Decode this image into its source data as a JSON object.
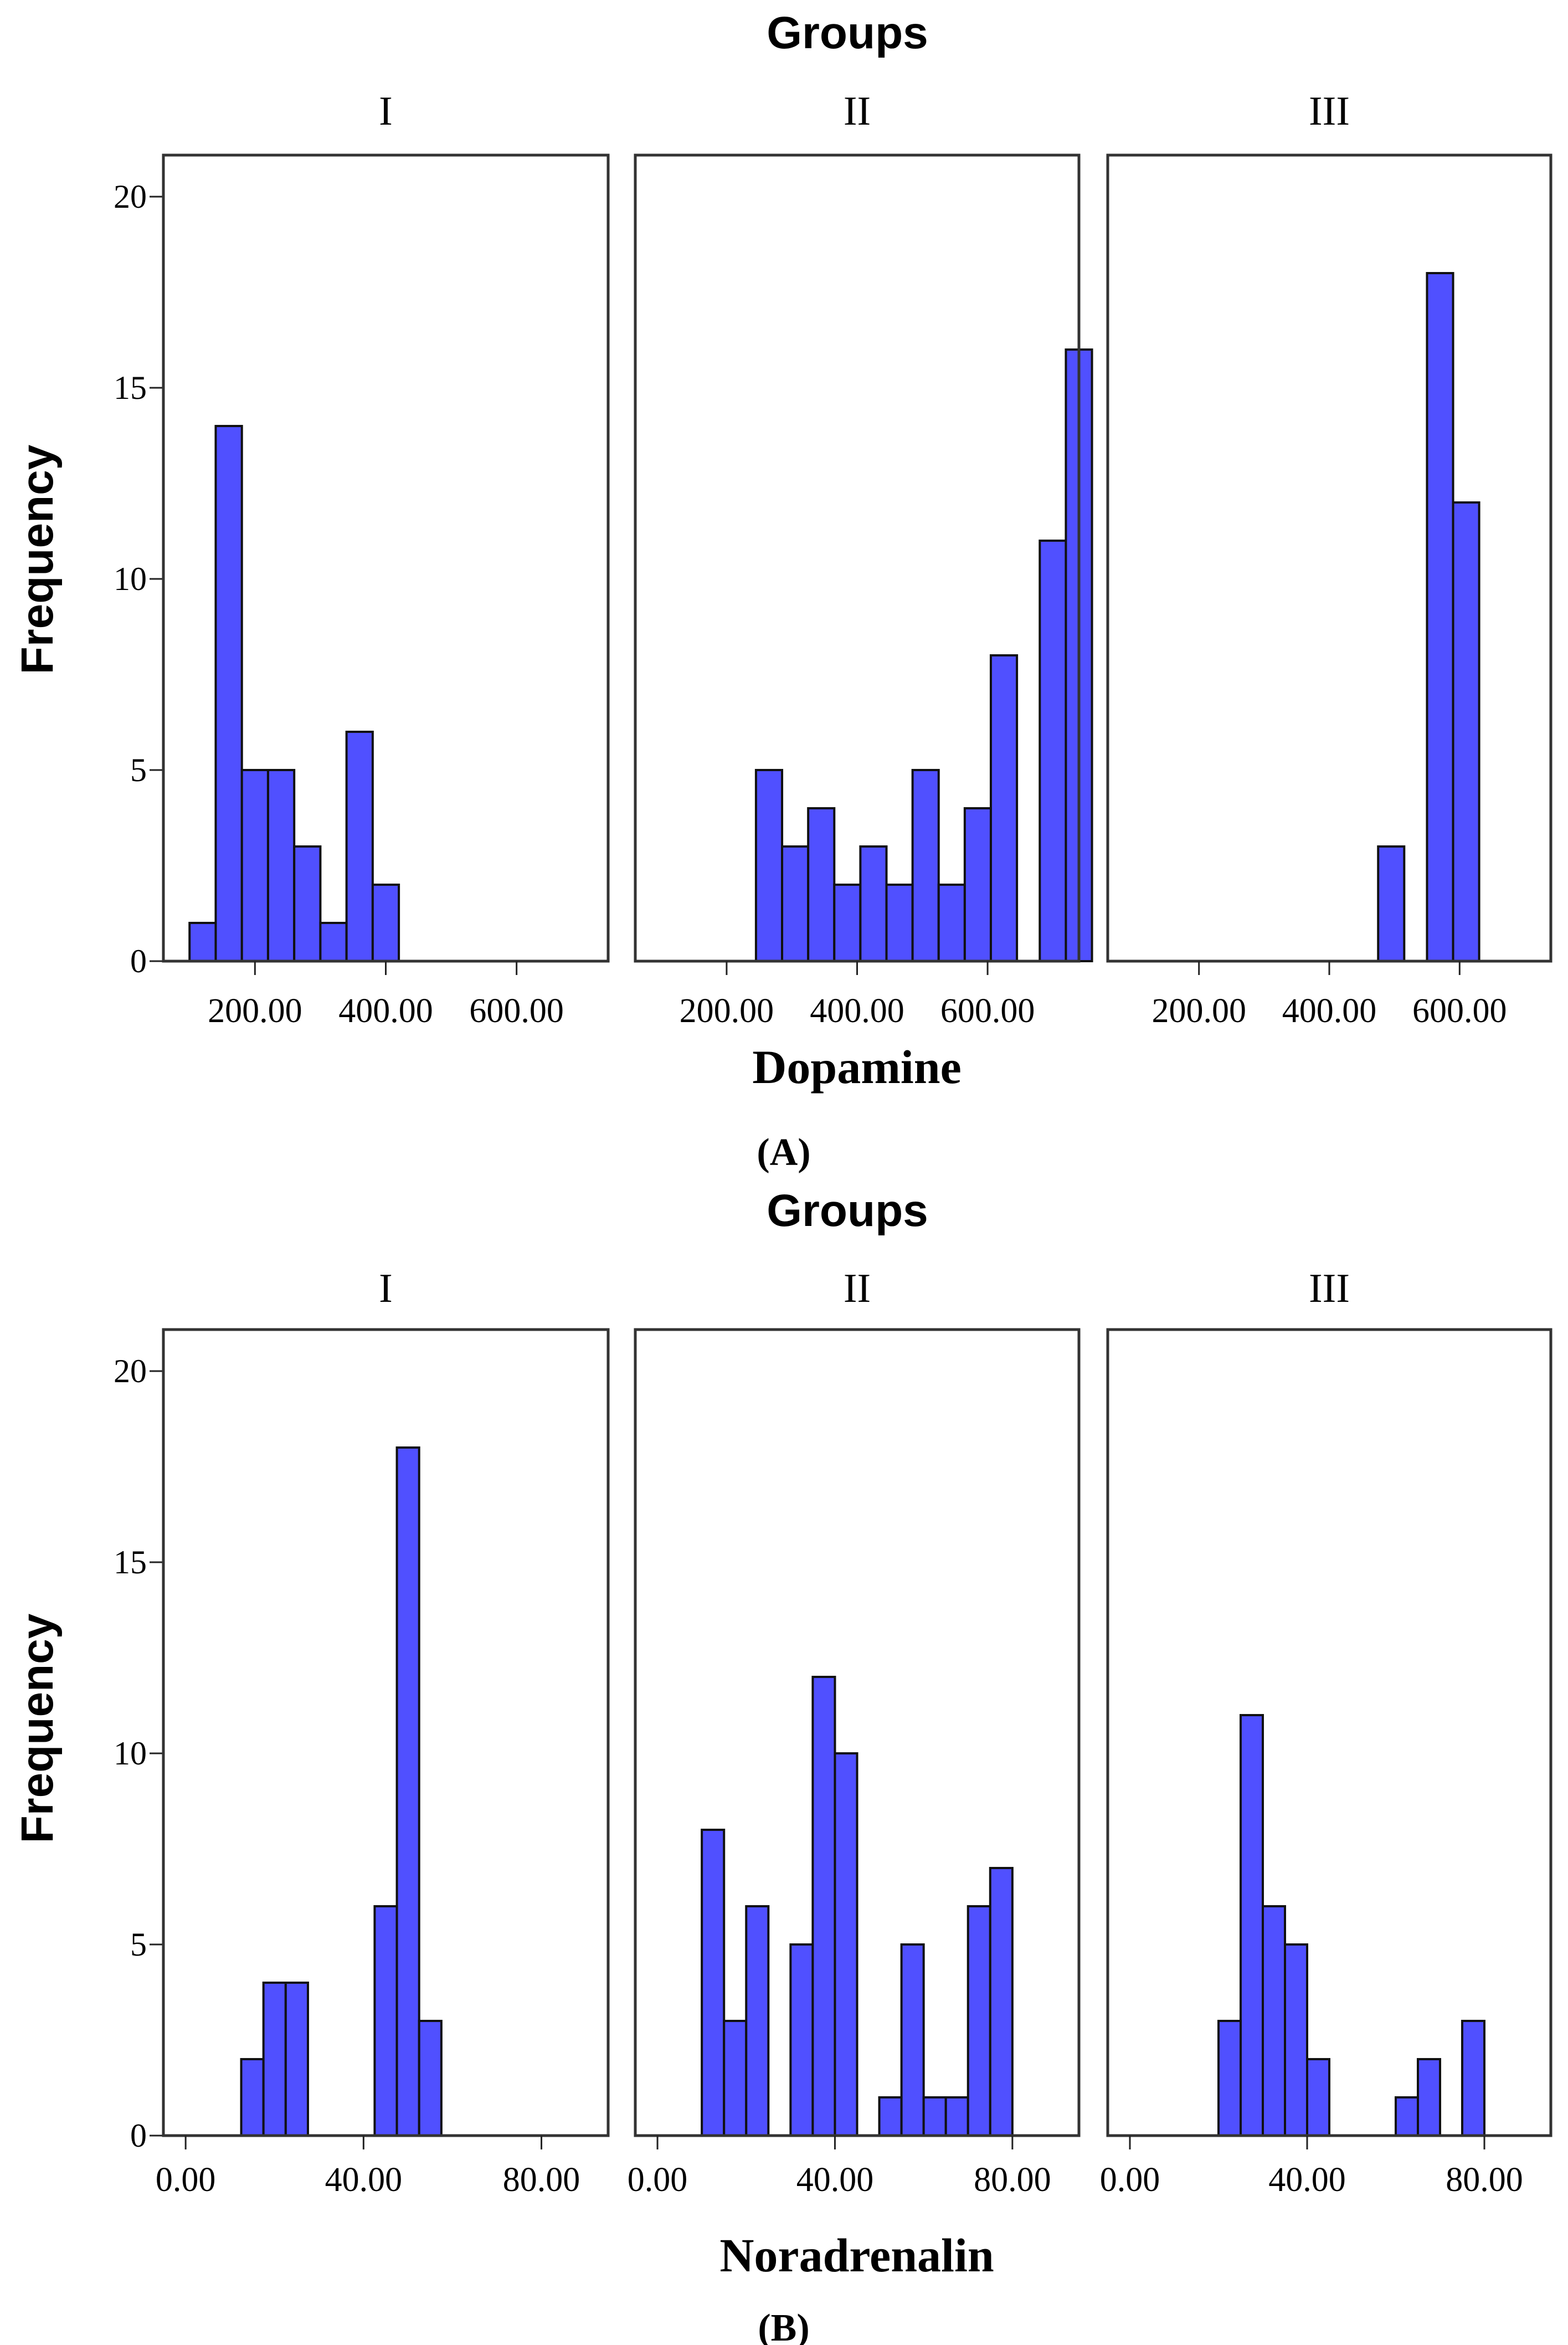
{
  "figure_labels": {
    "a": "(A)",
    "b": "(B)"
  },
  "colors": {
    "bar_fill": "#5050ff",
    "bar_edge": "#111111",
    "frame": "#333333"
  },
  "chart_data": [
    {
      "type": "bar",
      "subtype": "histogram-panels",
      "title": "Groups",
      "xlabel": "Dopamine",
      "ylabel": "Frequency",
      "ylim": [
        0,
        21
      ],
      "yticks": [
        0,
        5,
        10,
        15,
        20
      ],
      "ytick_labels": [
        "0",
        "5",
        "10",
        "15",
        "20"
      ],
      "xlim": [
        60,
        740
      ],
      "xticks": [
        200,
        400,
        600
      ],
      "xtick_labels": [
        "200.00",
        "400.00",
        "600.00"
      ],
      "bin_width": 40,
      "grid": false,
      "panels": [
        {
          "name": "I",
          "bins": [
            {
              "x": 120,
              "value": 1
            },
            {
              "x": 160,
              "value": 14
            },
            {
              "x": 200,
              "value": 5
            },
            {
              "x": 240,
              "value": 5
            },
            {
              "x": 280,
              "value": 3
            },
            {
              "x": 320,
              "value": 1
            },
            {
              "x": 360,
              "value": 6
            },
            {
              "x": 400,
              "value": 2
            }
          ]
        },
        {
          "name": "II",
          "bins": [
            {
              "x": 265,
              "value": 5
            },
            {
              "x": 305,
              "value": 3
            },
            {
              "x": 345,
              "value": 4
            },
            {
              "x": 385,
              "value": 2
            },
            {
              "x": 425,
              "value": 3
            },
            {
              "x": 465,
              "value": 2
            },
            {
              "x": 505,
              "value": 5
            },
            {
              "x": 545,
              "value": 2
            },
            {
              "x": 585,
              "value": 4
            },
            {
              "x": 625,
              "value": 8
            },
            {
              "x": 700,
              "value": 11
            },
            {
              "x": 740,
              "value": 16
            }
          ]
        },
        {
          "name": "III",
          "bins": [
            {
              "x": 495,
              "value": 3
            },
            {
              "x": 570,
              "value": 18
            },
            {
              "x": 610,
              "value": 12
            }
          ]
        }
      ]
    },
    {
      "type": "bar",
      "subtype": "histogram-panels",
      "title": "Groups",
      "xlabel": "Noradrenalin",
      "ylabel": "Frequency",
      "ylim": [
        0,
        21
      ],
      "yticks": [
        0,
        5,
        10,
        15,
        20
      ],
      "ytick_labels": [
        "0",
        "5",
        "10",
        "15",
        "20"
      ],
      "xlim": [
        -5,
        95
      ],
      "xticks": [
        0,
        40,
        80
      ],
      "xtick_labels": [
        "0.00",
        "40.00",
        "80.00"
      ],
      "bin_width": 5,
      "grid": false,
      "panels": [
        {
          "name": "I",
          "bins": [
            {
              "x": 15,
              "value": 2
            },
            {
              "x": 20,
              "value": 4
            },
            {
              "x": 25,
              "value": 4
            },
            {
              "x": 45,
              "value": 6
            },
            {
              "x": 50,
              "value": 18
            },
            {
              "x": 55,
              "value": 3
            }
          ]
        },
        {
          "name": "II",
          "bins": [
            {
              "x": 12.5,
              "value": 8
            },
            {
              "x": 17.5,
              "value": 3
            },
            {
              "x": 22.5,
              "value": 6
            },
            {
              "x": 32.5,
              "value": 5
            },
            {
              "x": 37.5,
              "value": 12
            },
            {
              "x": 42.5,
              "value": 10
            },
            {
              "x": 52.5,
              "value": 1
            },
            {
              "x": 57.5,
              "value": 5
            },
            {
              "x": 62.5,
              "value": 1
            },
            {
              "x": 67.5,
              "value": 1
            },
            {
              "x": 72.5,
              "value": 6
            },
            {
              "x": 77.5,
              "value": 7
            }
          ]
        },
        {
          "name": "III",
          "bins": [
            {
              "x": 22.5,
              "value": 3
            },
            {
              "x": 27.5,
              "value": 11
            },
            {
              "x": 32.5,
              "value": 6
            },
            {
              "x": 37.5,
              "value": 5
            },
            {
              "x": 42.5,
              "value": 2
            },
            {
              "x": 62.5,
              "value": 1
            },
            {
              "x": 67.5,
              "value": 2
            },
            {
              "x": 77.5,
              "value": 3
            }
          ]
        }
      ]
    }
  ]
}
